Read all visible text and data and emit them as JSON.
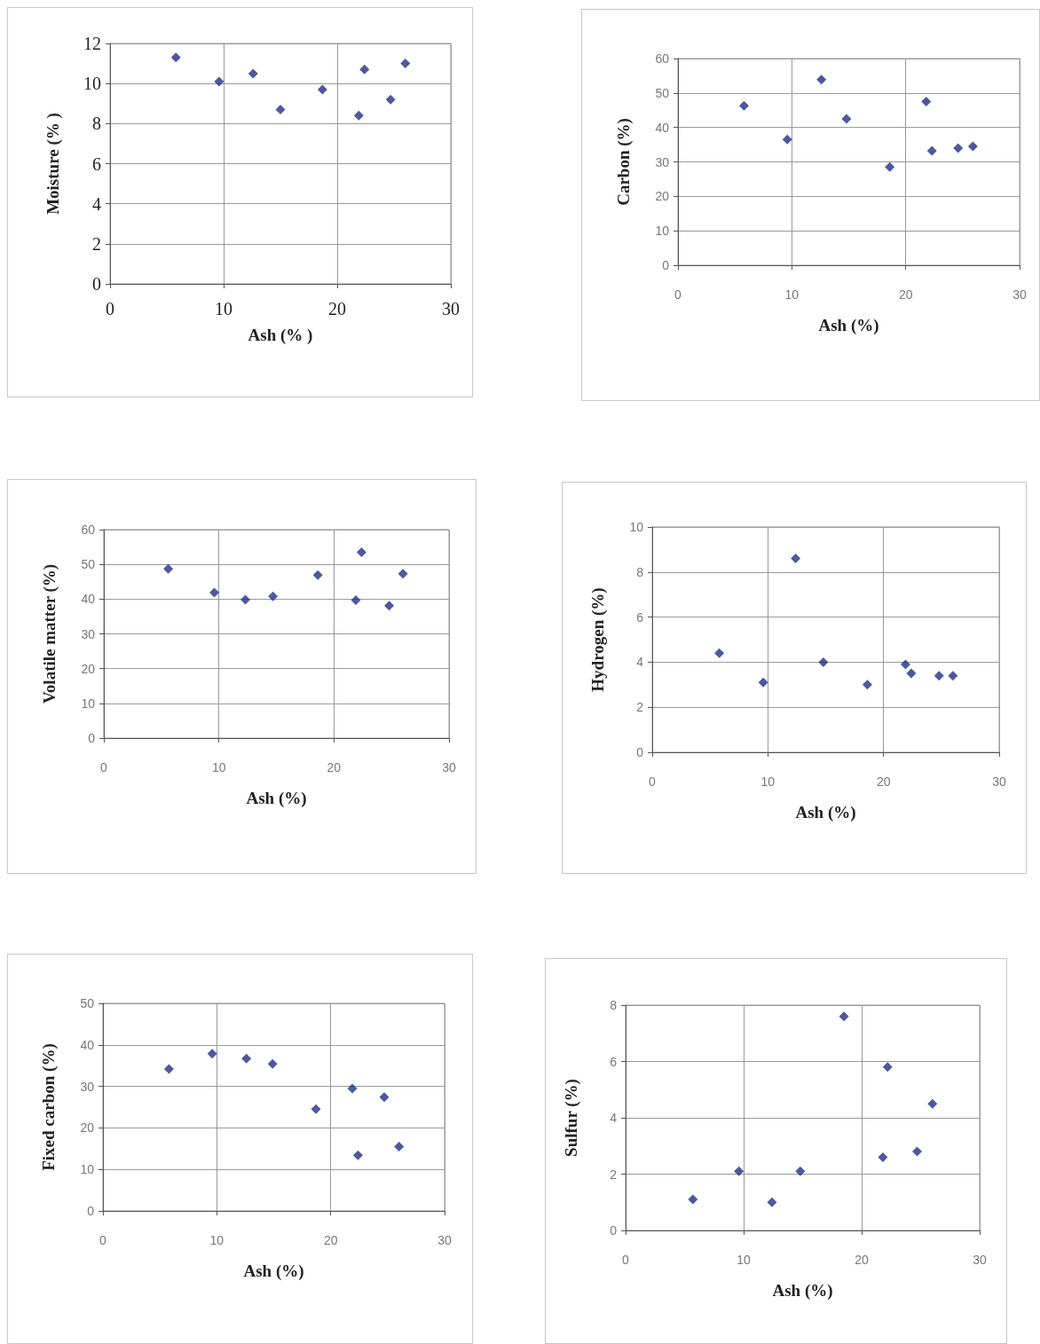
{
  "chart_data": [
    {
      "type": "scatter",
      "xlabel": "Ash (% )",
      "ylabel": "Moisture (% )",
      "xlim": [
        0,
        30
      ],
      "xticks": [
        0,
        10,
        20,
        30
      ],
      "ylim": [
        0,
        12
      ],
      "yticks": [
        0,
        2,
        4,
        6,
        8,
        10,
        12
      ],
      "grid": true,
      "marker": "diamond",
      "series": [
        {
          "color": "#1f2f86",
          "x": [
            5.8,
            9.6,
            12.6,
            15.0,
            18.7,
            21.9,
            22.4,
            24.7,
            26.0
          ],
          "values": [
            11.3,
            10.1,
            10.5,
            8.7,
            9.7,
            8.4,
            10.7,
            9.2,
            11.0
          ]
        }
      ]
    },
    {
      "type": "scatter",
      "xlabel": "Ash (%)",
      "ylabel": "Carbon (%)",
      "xlim": [
        0,
        30
      ],
      "xticks": [
        0,
        10,
        20,
        30
      ],
      "ylim": [
        0,
        60
      ],
      "yticks": [
        0,
        10,
        20,
        30,
        40,
        50,
        60
      ],
      "grid": true,
      "marker": "diamond",
      "series": [
        {
          "color": "#1f2f86",
          "x": [
            5.8,
            9.6,
            12.6,
            14.8,
            18.6,
            21.8,
            22.3,
            24.6,
            25.9
          ],
          "values": [
            46.3,
            36.5,
            53.9,
            42.5,
            28.5,
            47.5,
            33.2,
            34.0,
            34.5
          ]
        }
      ]
    },
    {
      "type": "scatter",
      "xlabel": "Ash (%)",
      "ylabel": "Volatile matter (%)",
      "xlim": [
        0,
        30
      ],
      "xticks": [
        0,
        10,
        20,
        30
      ],
      "ylim": [
        0,
        60
      ],
      "yticks": [
        0,
        10,
        20,
        30,
        40,
        50,
        60
      ],
      "grid": true,
      "marker": "diamond",
      "series": [
        {
          "color": "#1f2f86",
          "x": [
            5.6,
            9.6,
            12.3,
            14.7,
            18.6,
            21.9,
            22.4,
            24.8,
            26.0
          ],
          "values": [
            48.7,
            41.9,
            39.8,
            40.8,
            46.9,
            39.7,
            53.5,
            38.1,
            47.3
          ]
        }
      ]
    },
    {
      "type": "scatter",
      "xlabel": "Ash (%)",
      "ylabel": "Hydrogen (%)",
      "xlim": [
        0,
        30
      ],
      "xticks": [
        0,
        10,
        20,
        30
      ],
      "ylim": [
        0,
        10
      ],
      "yticks": [
        0,
        2,
        4,
        6,
        8,
        10
      ],
      "grid": true,
      "marker": "diamond",
      "series": [
        {
          "color": "#1f2f86",
          "x": [
            5.8,
            9.6,
            12.4,
            14.8,
            18.6,
            21.9,
            22.4,
            24.8,
            26.0
          ],
          "values": [
            4.4,
            3.1,
            8.6,
            4.0,
            3.0,
            3.9,
            3.5,
            3.4,
            3.4
          ]
        }
      ]
    },
    {
      "type": "scatter",
      "xlabel": "Ash (%)",
      "ylabel": "Fixed carbon (%)",
      "xlim": [
        0,
        30
      ],
      "xticks": [
        0,
        10,
        20,
        30
      ],
      "ylim": [
        0,
        50
      ],
      "yticks": [
        0,
        10,
        20,
        30,
        40,
        50
      ],
      "grid": true,
      "marker": "diamond",
      "series": [
        {
          "color": "#1f2f86",
          "x": [
            5.8,
            9.6,
            12.6,
            14.9,
            18.7,
            21.9,
            22.4,
            24.7,
            26.0
          ],
          "values": [
            34.2,
            37.9,
            36.7,
            35.4,
            24.5,
            29.5,
            13.4,
            27.4,
            15.5
          ]
        }
      ]
    },
    {
      "type": "scatter",
      "xlabel": "Ash (%)",
      "ylabel": "Sulfur (%)",
      "xlim": [
        0,
        30
      ],
      "xticks": [
        0,
        10,
        20,
        30
      ],
      "ylim": [
        0,
        8
      ],
      "yticks": [
        0,
        2,
        4,
        6,
        8
      ],
      "grid": true,
      "marker": "diamond",
      "series": [
        {
          "color": "#1f2f86",
          "x": [
            5.7,
            9.6,
            12.4,
            14.8,
            18.5,
            21.8,
            22.2,
            24.7,
            26.0
          ],
          "values": [
            1.1,
            2.1,
            1.0,
            2.1,
            7.6,
            2.6,
            5.8,
            2.8,
            4.5
          ]
        }
      ]
    }
  ]
}
